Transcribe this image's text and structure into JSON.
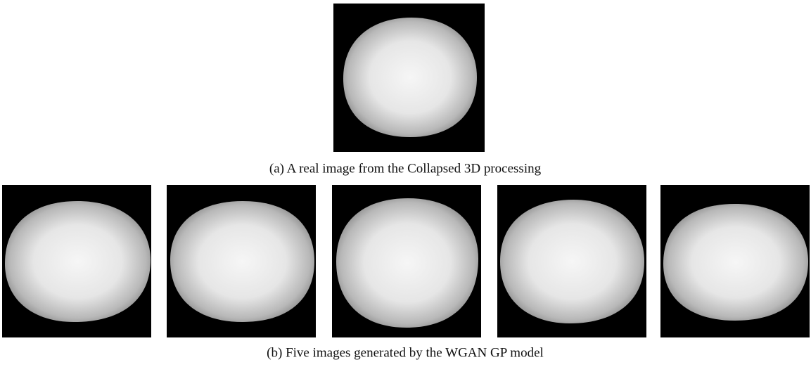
{
  "figure": {
    "subfigures": [
      {
        "caption": "(a) A real image from the Collapsed 3D processing"
      },
      {
        "caption": "(b) Five images generated by the WGAN GP model"
      }
    ]
  }
}
